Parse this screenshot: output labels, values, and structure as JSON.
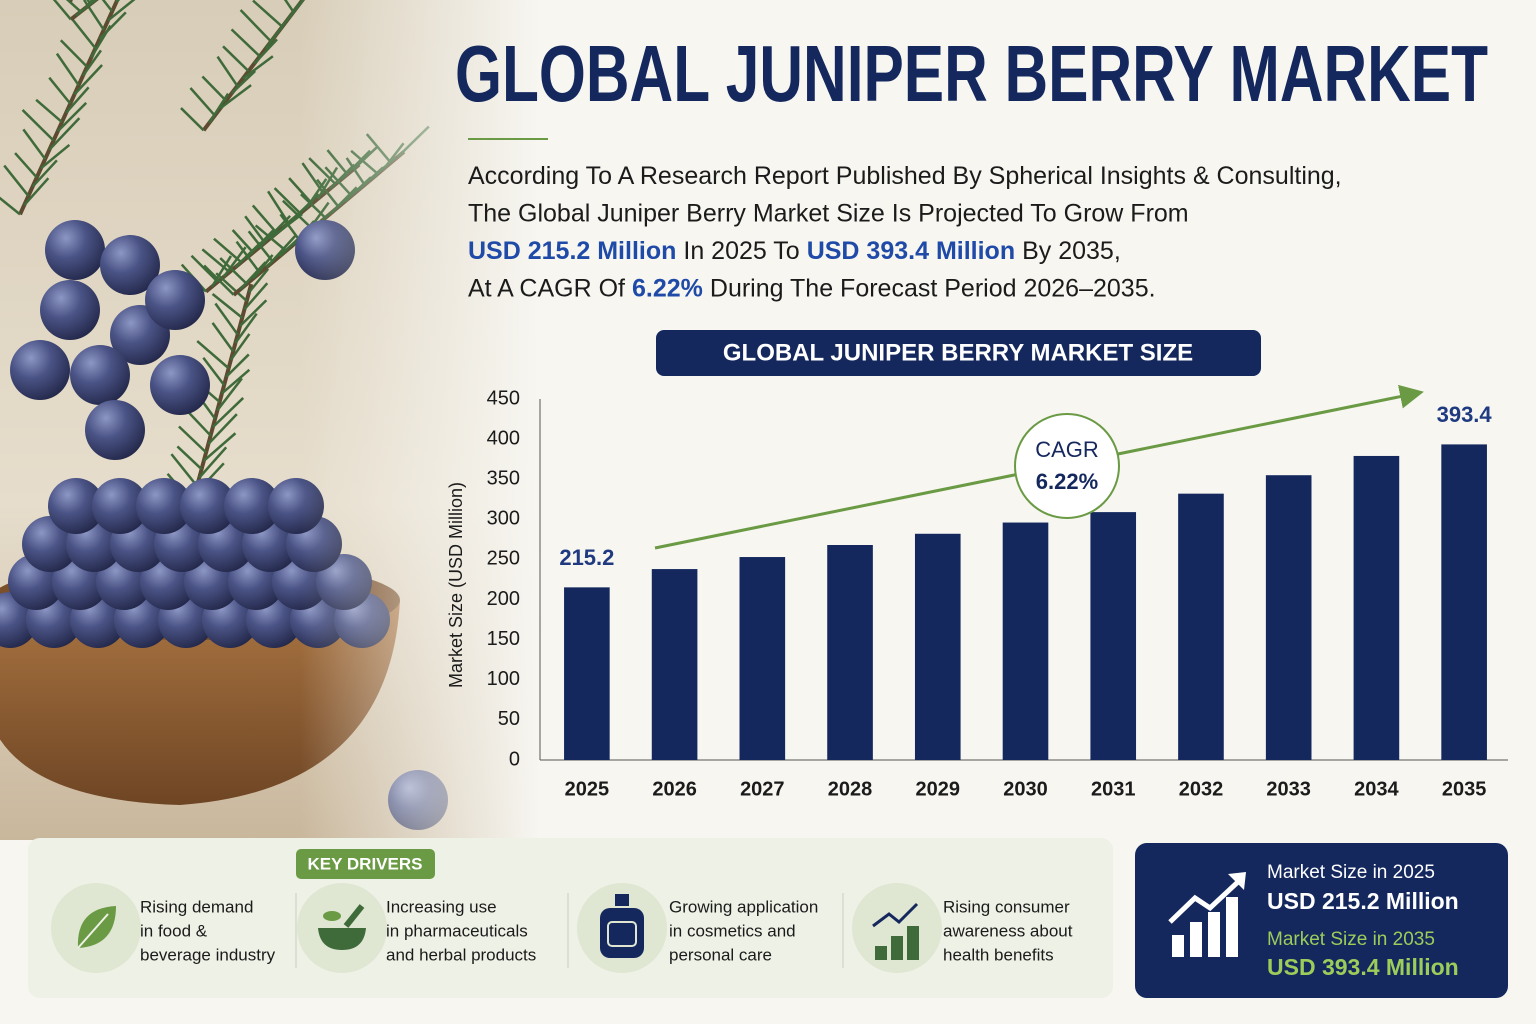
{
  "header": {
    "title": "GLOBAL JUNIPER BERRY MARKET"
  },
  "intro": {
    "lines": [
      [
        {
          "text": "According To A Research Report Published By Spherical Insights & Consulting,"
        }
      ],
      [
        {
          "text": "The Global Juniper Berry Market Size Is Projected To Grow From"
        }
      ],
      [
        {
          "text": "USD 215.2 Million",
          "highlight": true
        },
        {
          "text": "In 2025 To"
        },
        {
          "text": "USD 393.4 Million",
          "highlight": true
        },
        {
          "text": "By 2035,"
        }
      ],
      [
        {
          "text": "At A CAGR Of"
        },
        {
          "text": "6.22%",
          "highlight": true
        },
        {
          "text": "During The Forecast Period 2026–2035."
        }
      ]
    ]
  },
  "chart_data": {
    "type": "bar",
    "title": "GLOBAL JUNIPER BERRY MARKET SIZE",
    "y_label": "Market Size (USD Million)",
    "categories": [
      "2025",
      "2026",
      "2027",
      "2028",
      "2029",
      "2030",
      "2031",
      "2032",
      "2033",
      "2034",
      "2035"
    ],
    "values": [
      215.2,
      238,
      253,
      268,
      282,
      296,
      309,
      332,
      355,
      379,
      393.4
    ],
    "labeled": [
      0,
      10
    ],
    "color": "#14285e",
    "ylim": [
      0,
      450
    ],
    "yticks": [
      0,
      50,
      100,
      150,
      200,
      250,
      300,
      350,
      400,
      450
    ],
    "grid": false,
    "annotation": {
      "lines": [
        "CAGR",
        "6.22%"
      ],
      "color": "#6a9a44"
    }
  },
  "key_drivers": {
    "title": "KEY DRIVERS",
    "items": [
      {
        "lines": [
          "Rising demand",
          "in food &",
          "beverage industry"
        ]
      },
      {
        "lines": [
          "Increasing use",
          "in pharmaceuticals",
          "and herbal products"
        ]
      },
      {
        "lines": [
          "Growing application",
          "in cosmetics and",
          "personal care"
        ]
      },
      {
        "lines": [
          "Rising consumer",
          "awareness about",
          "health benefits"
        ]
      }
    ]
  },
  "summary": {
    "label_2025": "Market Size in 2025",
    "value_2025": "USD 215.2 Million",
    "label_2035": "Market Size in 2035",
    "value_2035": "USD 393.4 Million"
  }
}
